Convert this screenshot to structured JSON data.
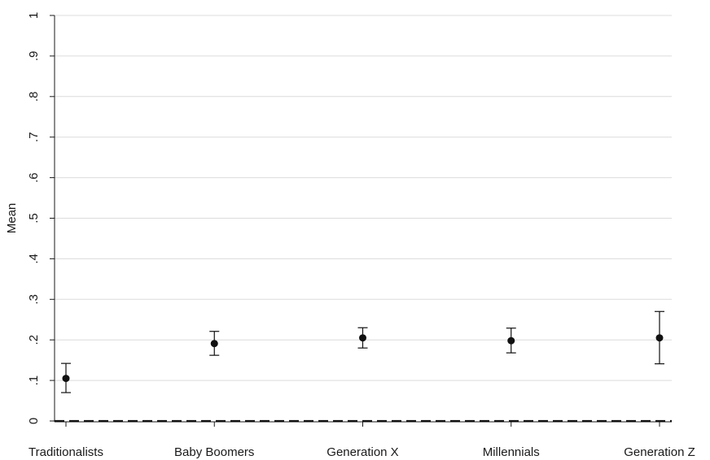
{
  "chart_data": {
    "type": "scatter",
    "title": "",
    "xlabel": "",
    "ylabel": "Mean",
    "ylim": [
      0,
      1
    ],
    "yticks": [
      0,
      0.1,
      0.2,
      0.3,
      0.4,
      0.5,
      0.6,
      0.7,
      0.8,
      0.9,
      1
    ],
    "ytick_labels": [
      "0",
      ".1",
      ".2",
      ".3",
      ".4",
      ".5",
      ".6",
      ".7",
      ".8",
      ".9",
      "1"
    ],
    "categories": [
      "Traditionalists",
      "Baby Boomers",
      "Generation X",
      "Millennials",
      "Generation Z"
    ],
    "values": [
      0.105,
      0.191,
      0.205,
      0.198,
      0.205
    ],
    "ci_low": [
      0.07,
      0.162,
      0.18,
      0.168,
      0.141
    ],
    "ci_high": [
      0.142,
      0.221,
      0.23,
      0.229,
      0.27
    ],
    "reference_line": {
      "y": 0,
      "style": "dashed"
    },
    "grid": true,
    "colors": {
      "marker": "#111111",
      "grid": "#dcdcdc"
    }
  }
}
